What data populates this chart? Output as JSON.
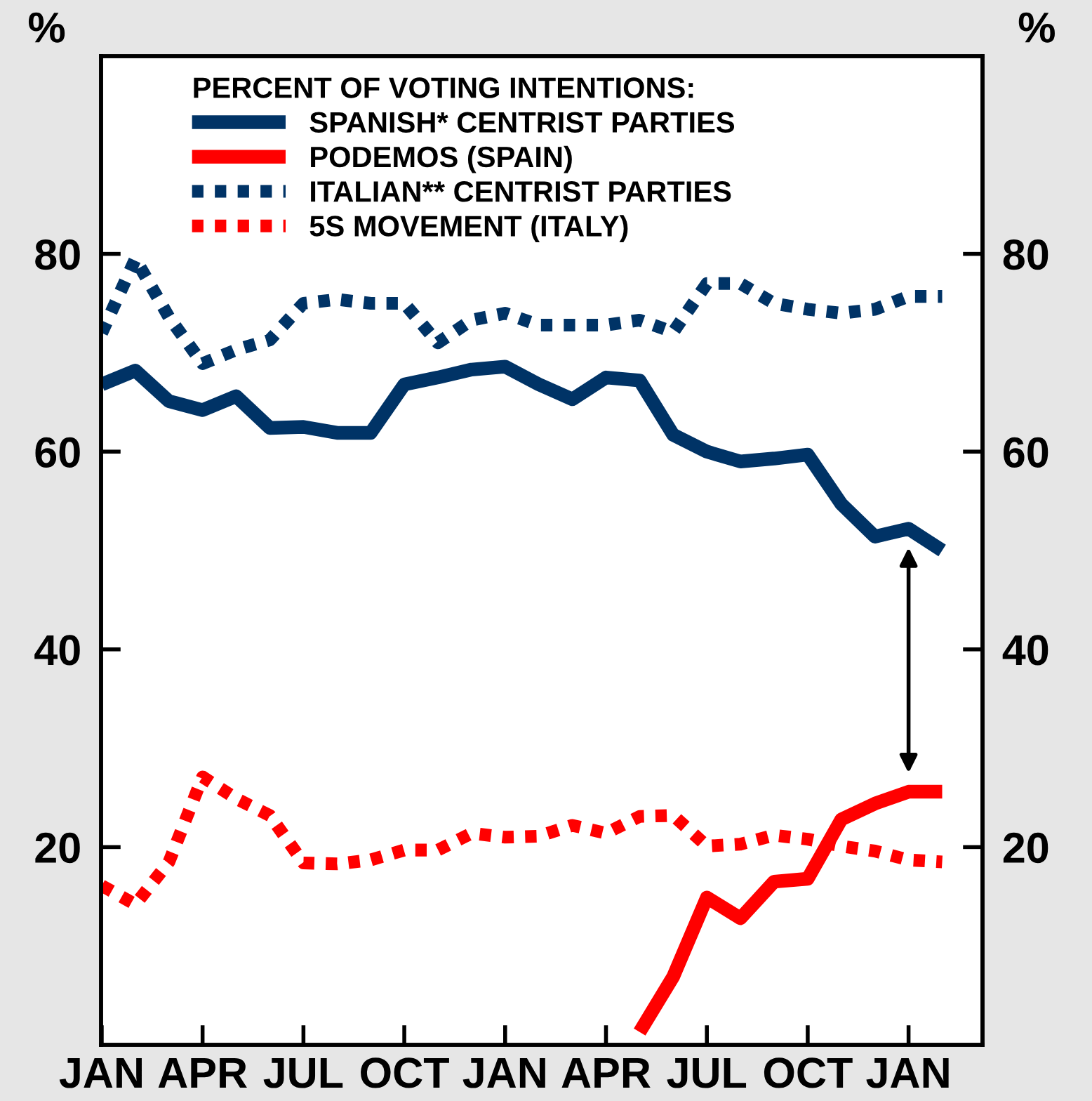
{
  "chart_data": {
    "type": "line",
    "ylabel": "%",
    "y2label": "%",
    "legend_title": "PERCENT OF VOTING INTENTIONS:",
    "legend": "top left",
    "grid": false,
    "marker": "none",
    "categories": [
      "JAN",
      null,
      null,
      "APR",
      null,
      null,
      "JUL",
      null,
      null,
      "OCT",
      null,
      null,
      "JAN",
      null,
      null,
      "APR",
      null,
      null,
      "JUL",
      null,
      null,
      "OCT",
      null,
      null,
      "JAN",
      null
    ],
    "series": [
      {
        "name": "SPANISH* CENTRIST PARTIES",
        "color": "#003366",
        "line_style": "solid",
        "values": [
          66.8,
          68.2,
          65.1,
          64.2,
          65.6,
          62.4,
          62.5,
          61.9,
          61.9,
          66.8,
          67.5,
          68.3,
          68.6,
          66.8,
          65.3,
          67.5,
          67.2,
          61.7,
          60.0,
          59.0,
          59.3,
          59.7,
          54.7,
          51.4,
          52.2,
          50.0
        ]
      },
      {
        "name": "PODEMOS (SPAIN)",
        "color": "#ff0000",
        "line_style": "solid",
        "values": [
          null,
          null,
          null,
          null,
          null,
          null,
          null,
          null,
          null,
          null,
          null,
          null,
          null,
          null,
          null,
          null,
          1.3,
          6.9,
          14.9,
          12.8,
          16.5,
          16.8,
          22.8,
          24.4,
          25.6,
          25.6
        ]
      },
      {
        "name": "ITALIAN** CENTRIST PARTIES",
        "color": "#003366",
        "line_style": "dotted",
        "values": [
          72.0,
          79.5,
          73.6,
          68.9,
          70.3,
          71.3,
          75.0,
          75.4,
          75.0,
          75.0,
          71.0,
          73.3,
          74.0,
          72.8,
          72.8,
          72.8,
          73.3,
          72.1,
          77.0,
          77.0,
          75.0,
          74.4,
          74.0,
          74.4,
          75.7,
          75.7
        ]
      },
      {
        "name": "5S MOVEMENT (ITALY)",
        "color": "#ff0000",
        "line_style": "dotted",
        "values": [
          16.1,
          14.2,
          18.5,
          27.1,
          24.9,
          23.2,
          18.4,
          18.3,
          18.7,
          19.7,
          19.7,
          21.4,
          21.0,
          21.1,
          22.2,
          21.4,
          23.1,
          23.2,
          20.1,
          20.3,
          21.2,
          20.8,
          20.1,
          19.6,
          18.7,
          18.5
        ]
      }
    ],
    "ylim": [
      0,
      100
    ],
    "yticks": [
      20,
      40,
      60,
      80
    ],
    "y2lim": [
      0,
      100
    ],
    "y2ticks": [
      20,
      40,
      60,
      80
    ]
  }
}
